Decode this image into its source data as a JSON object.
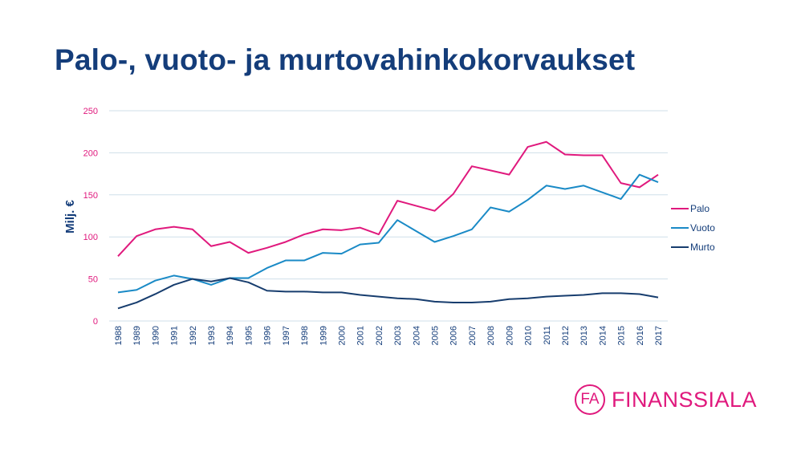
{
  "title": "Palo-, vuoto- ja murtovahinkokorvaukset",
  "logo": {
    "mark": "FA",
    "name": "FINANSSIALA"
  },
  "chart_data": {
    "type": "line",
    "title": "",
    "xlabel": "",
    "ylabel": "Milj. €",
    "ylim": [
      0,
      250
    ],
    "yticks": [
      0,
      50,
      100,
      150,
      200,
      250
    ],
    "grid": true,
    "legend": "right",
    "x": [
      "1988",
      "1989",
      "1990",
      "1991",
      "1992",
      "1993",
      "1994",
      "1995",
      "1996",
      "1997",
      "1998",
      "1999",
      "2000",
      "2001",
      "2002",
      "2003",
      "2004",
      "2005",
      "2006",
      "2007",
      "2008",
      "2009",
      "2010",
      "2011",
      "2012",
      "2013",
      "2014",
      "2015",
      "2016",
      "2017"
    ],
    "series": [
      {
        "name": "Palo",
        "color": "#e0197d",
        "values": [
          77,
          101,
          109,
          112,
          109,
          89,
          94,
          81,
          87,
          94,
          103,
          109,
          108,
          111,
          103,
          143,
          137,
          131,
          151,
          184,
          179,
          174,
          207,
          213,
          198,
          197,
          197,
          164,
          159,
          174
        ]
      },
      {
        "name": "Vuoto",
        "color": "#1a8ac6",
        "values": [
          34,
          37,
          48,
          54,
          50,
          43,
          51,
          51,
          63,
          72,
          72,
          81,
          80,
          91,
          93,
          120,
          107,
          94,
          101,
          109,
          135,
          130,
          144,
          161,
          157,
          161,
          153,
          145,
          174,
          165
        ]
      },
      {
        "name": "Murto",
        "color": "#173d6e",
        "values": [
          15,
          22,
          32,
          43,
          50,
          47,
          51,
          46,
          36,
          35,
          35,
          34,
          34,
          31,
          29,
          27,
          26,
          23,
          22,
          22,
          23,
          26,
          27,
          29,
          30,
          31,
          33,
          33,
          32,
          28
        ]
      }
    ]
  }
}
